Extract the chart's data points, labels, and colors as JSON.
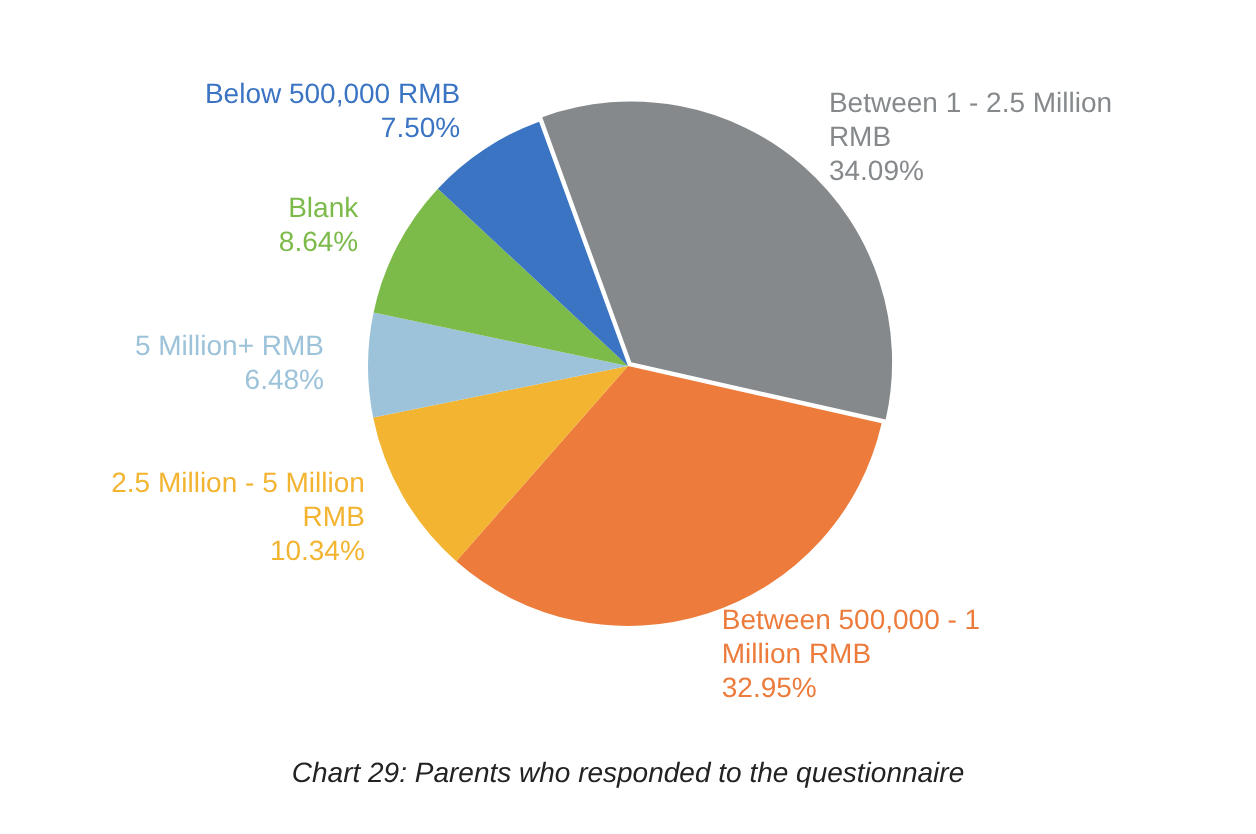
{
  "chart_data": {
    "type": "pie",
    "title": "Chart 29: Parents who responded to the questionnaire",
    "categories": [
      "Between 1 - 2.5 Million RMB",
      "Between 500,000 - 1 Million RMB",
      "2.5 Million - 5 Million RMB",
      "5 Million+ RMB",
      "Blank",
      "Below 500,000 RMB"
    ],
    "values": [
      34.09,
      32.95,
      10.34,
      6.48,
      8.64,
      7.5
    ],
    "colors": [
      "#86898b",
      "#ec7b3c",
      "#f2b431",
      "#9cc3d9",
      "#7cba4a",
      "#3b74c3"
    ],
    "value_labels": [
      "34.09%",
      "32.95%",
      "10.34%",
      "6.48%",
      "8.64%",
      "7.50%"
    ],
    "legend": false
  }
}
